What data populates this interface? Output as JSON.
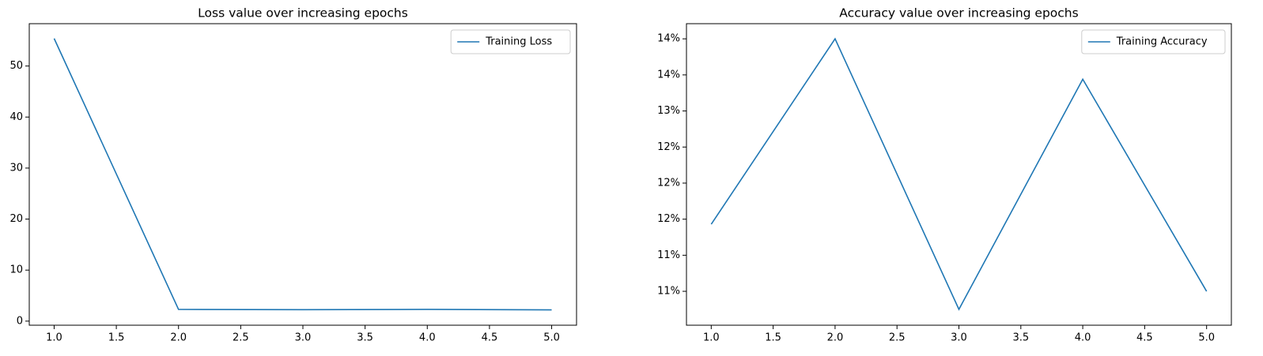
{
  "chart_data": [
    {
      "type": "line",
      "title": "Loss value over increasing epochs",
      "x": [
        1,
        2,
        3,
        4,
        5
      ],
      "series": [
        {
          "name": "Training Loss",
          "color": "#1f77b4",
          "values": [
            55.4,
            2.3,
            2.25,
            2.3,
            2.2
          ]
        }
      ],
      "xlim": [
        0.8,
        5.2
      ],
      "xticks": [
        {
          "value": 1,
          "label": "1.0"
        },
        {
          "value": 1.5,
          "label": "1.5"
        },
        {
          "value": 2,
          "label": "2.0"
        },
        {
          "value": 2.5,
          "label": "2.5"
        },
        {
          "value": 3,
          "label": "3.0"
        },
        {
          "value": 3.5,
          "label": "3.5"
        },
        {
          "value": 4,
          "label": "4.0"
        },
        {
          "value": 4.5,
          "label": "4.5"
        },
        {
          "value": 5,
          "label": "5.0"
        }
      ],
      "ylim": [
        -0.8,
        58.3
      ],
      "yticks": [
        0,
        10,
        20,
        30,
        40,
        50
      ],
      "legend": "upper right",
      "grid": false
    },
    {
      "type": "line",
      "title": "Accuracy value over increasing epochs",
      "x": [
        1,
        2,
        3,
        4,
        5
      ],
      "series": [
        {
          "name": "Training Accuracy",
          "color": "#1f77b4",
          "values": [
            11.68,
            14.25,
            10.5,
            13.69,
            10.75
          ]
        }
      ],
      "xlim": [
        0.8,
        5.2
      ],
      "xticks": [
        {
          "value": 1,
          "label": "1.0"
        },
        {
          "value": 1.5,
          "label": "1.5"
        },
        {
          "value": 2,
          "label": "2.0"
        },
        {
          "value": 2.5,
          "label": "2.5"
        },
        {
          "value": 3,
          "label": "3.0"
        },
        {
          "value": 3.5,
          "label": "3.5"
        },
        {
          "value": 4,
          "label": "4.0"
        },
        {
          "value": 4.5,
          "label": "4.5"
        },
        {
          "value": 5,
          "label": "5.0"
        }
      ],
      "ylim": [
        10.28,
        14.46
      ],
      "yticks": [
        {
          "value": 10.75,
          "label": "11%"
        },
        {
          "value": 11.25,
          "label": "11%"
        },
        {
          "value": 11.75,
          "label": "12%"
        },
        {
          "value": 12.25,
          "label": "12%"
        },
        {
          "value": 12.75,
          "label": "12%"
        },
        {
          "value": 13.25,
          "label": "13%"
        },
        {
          "value": 13.75,
          "label": "14%"
        },
        {
          "value": 14.25,
          "label": "14%"
        }
      ],
      "legend": "upper right",
      "grid": false
    }
  ]
}
